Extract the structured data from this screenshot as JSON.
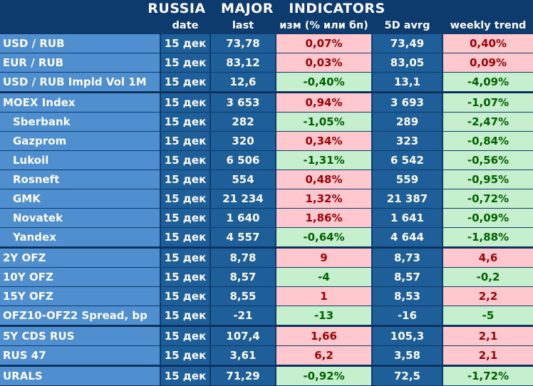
{
  "title": "RUSSIA   MAJOR   INDICATORS",
  "headers": {
    "date": "date",
    "last": "last",
    "change": "изм (% или бп)",
    "avg5d": "5D avrg",
    "weekly": "weekly trend"
  },
  "rows": [
    {
      "name": "USD / RUB",
      "date": "15 дек",
      "last": "73,78",
      "change": "0,07%",
      "avg5d": "73,49",
      "weekly": "0,40%"
    },
    {
      "name": "EUR / RUB",
      "date": "15 дек",
      "last": "83,12",
      "change": "0,03%",
      "avg5d": "83,05",
      "weekly": "0,09%"
    },
    {
      "name": "USD / RUB Impld Vol 1M",
      "date": "15 дек",
      "last": "12,6",
      "change": "-0,40%",
      "avg5d": "13,1",
      "weekly": "-4,09%"
    },
    {
      "name": "MOEX Index",
      "date": "15 дек",
      "last": "3 653",
      "change": "0,94%",
      "avg5d": "3 693",
      "weekly": "-1,07%"
    },
    {
      "name": "Sberbank",
      "date": "15 дек",
      "last": "282",
      "change": "-1,05%",
      "avg5d": "289",
      "weekly": "-2,47%"
    },
    {
      "name": "Gazprom",
      "date": "15 дек",
      "last": "320",
      "change": "0,34%",
      "avg5d": "323",
      "weekly": "-0,84%"
    },
    {
      "name": "Lukoil",
      "date": "15 дек",
      "last": "6 506",
      "change": "-1,31%",
      "avg5d": "6 542",
      "weekly": "-0,56%"
    },
    {
      "name": "Rosneft",
      "date": "15 дек",
      "last": "554",
      "change": "0,48%",
      "avg5d": "559",
      "weekly": "-0,95%"
    },
    {
      "name": "GMK",
      "date": "15 дек",
      "last": "21 234",
      "change": "1,32%",
      "avg5d": "21 387",
      "weekly": "-0,72%"
    },
    {
      "name": "Novatek",
      "date": "15 дек",
      "last": "1 640",
      "change": "1,86%",
      "avg5d": "1 641",
      "weekly": "-0,09%"
    },
    {
      "name": "Yandex",
      "date": "15 дек",
      "last": "4 557",
      "change": "-0,64%",
      "avg5d": "4 644",
      "weekly": "-1,88%"
    },
    {
      "name": "2Y OFZ",
      "date": "15 дек",
      "last": "8,78",
      "change": "9",
      "avg5d": "8,73",
      "weekly": "4,6"
    },
    {
      "name": "10Y OFZ",
      "date": "15 дек",
      "last": "8,57",
      "change": "-4",
      "avg5d": "8,57",
      "weekly": "-0,2"
    },
    {
      "name": "15Y OFZ",
      "date": "15 дек",
      "last": "8,55",
      "change": "1",
      "avg5d": "8,53",
      "weekly": "2,2"
    },
    {
      "name": "OFZ10-OFZ2 Spread, bp",
      "date": "15 дек",
      "last": "-21",
      "change": "-13",
      "avg5d": "-16",
      "weekly": "-5"
    },
    {
      "name": "5Y CDS RUS",
      "date": "15 дек",
      "last": "107,4",
      "change": "1,66",
      "avg5d": "105,3",
      "weekly": "2,1"
    },
    {
      "name": "RUS 47",
      "date": "15 дек",
      "last": "3,61",
      "change": "6,2",
      "avg5d": "3,58",
      "weekly": "2,1"
    },
    {
      "name": "URALS",
      "date": "15 дек",
      "last": "71,29",
      "change": "-0,92%",
      "avg5d": "72,5",
      "weekly": "-1,72%"
    }
  ],
  "colors": {
    "background": "#0e3b6e",
    "dark_cell": "#1f5f99",
    "light_cell": "#4f8fcf",
    "up_fill": "#ffc7ce",
    "up_text": "#9c0006",
    "down_fill": "#c6efce",
    "down_text": "#006100"
  }
}
